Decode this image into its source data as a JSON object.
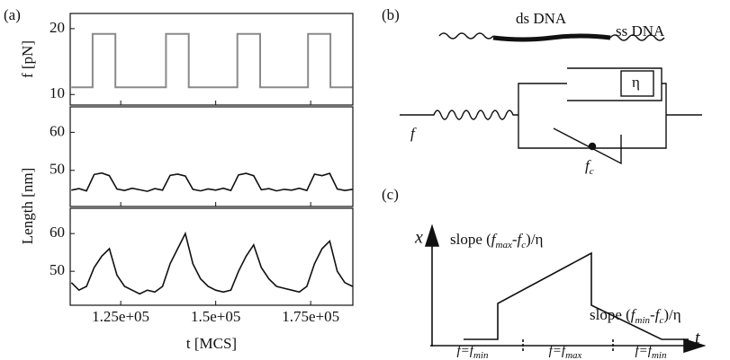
{
  "chart_data": [
    {
      "type": "line",
      "panel_label": "(a)",
      "y_label": "f [pN]",
      "xlim": [
        111700,
        186100
      ],
      "ylim": [
        8.4,
        22.3
      ],
      "yticks": [
        10,
        20
      ],
      "series": [
        {
          "color": "#8a8a8a",
          "x": [
            112000,
            117600,
            117600,
            123600,
            123600,
            136900,
            136900,
            142900,
            142900,
            155700,
            155700,
            161700,
            161700,
            174300,
            174300,
            180200,
            180200,
            186000
          ],
          "values": [
            11.1,
            11.1,
            19.2,
            19.2,
            11.1,
            11.1,
            19.2,
            19.2,
            11.1,
            11.1,
            19.2,
            19.2,
            11.1,
            11.1,
            19.2,
            19.2,
            11.1,
            11.1
          ]
        }
      ]
    },
    {
      "type": "line",
      "y_label": "Length [nm]",
      "xlim": [
        111700,
        186100
      ],
      "ylim": [
        40.5,
        66.7
      ],
      "yticks": [
        50,
        60
      ],
      "series": [
        {
          "color": "#111111",
          "x": [
            112000,
            114000,
            116000,
            118000,
            120000,
            122000,
            124000,
            126000,
            128000,
            130000,
            132000,
            134000,
            136000,
            138000,
            140000,
            142000,
            144000,
            146000,
            148000,
            150000,
            152000,
            154000,
            156000,
            158000,
            160000,
            162000,
            164000,
            166000,
            168000,
            170000,
            172000,
            174000,
            176000,
            178000,
            180000,
            182000,
            184000,
            186000
          ],
          "values": [
            44.8,
            45.2,
            44.6,
            48.9,
            49.3,
            48.6,
            45.1,
            44.7,
            45.3,
            44.9,
            44.5,
            45.2,
            44.8,
            48.7,
            49.0,
            48.5,
            45.0,
            44.6,
            45.1,
            44.8,
            45.3,
            44.7,
            48.8,
            49.2,
            48.6,
            44.9,
            45.2,
            44.6,
            45.0,
            44.8,
            45.3,
            44.7,
            49.0,
            48.6,
            49.2,
            45.1,
            44.7,
            45.0
          ]
        }
      ]
    },
    {
      "type": "line",
      "x_label": "t [MCS]",
      "xlim": [
        111700,
        186100
      ],
      "ylim": [
        41,
        66.7
      ],
      "yticks": [
        50,
        60
      ],
      "xticks": [
        {
          "value": 125000,
          "label": "1.25e+05"
        },
        {
          "value": 150000,
          "label": "1.5e+05"
        },
        {
          "value": 175000,
          "label": "1.75e+05"
        }
      ],
      "series": [
        {
          "color": "#111111",
          "x": [
            112000,
            114000,
            116000,
            118000,
            120000,
            122000,
            124000,
            126000,
            128000,
            130000,
            132000,
            134000,
            136000,
            138000,
            140000,
            142000,
            144000,
            146000,
            148000,
            150000,
            152000,
            154000,
            156000,
            158000,
            160000,
            162000,
            164000,
            166000,
            168000,
            170000,
            172000,
            174000,
            176000,
            178000,
            180000,
            182000,
            184000,
            186000
          ],
          "values": [
            47,
            45,
            46,
            51,
            54,
            56,
            49,
            46,
            45,
            44,
            45,
            44.5,
            46,
            52,
            56,
            60,
            52,
            48,
            46,
            45,
            44.5,
            45,
            50,
            54,
            57,
            51,
            48,
            46,
            45.5,
            45,
            44.5,
            46,
            52,
            56,
            58,
            50,
            47,
            46
          ]
        }
      ]
    }
  ],
  "panel_b": {
    "label": "(b)",
    "ds": "ds DNA",
    "ss": "ss DNA",
    "eta": "η",
    "f": "f",
    "fc": [
      "f",
      "c"
    ]
  },
  "panel_c": {
    "label": "(c)",
    "x_axis": "x",
    "t_axis": "t",
    "slope_max": [
      "slope (",
      "f",
      "max",
      "-",
      "f",
      "c",
      ")/η"
    ],
    "slope_min": [
      "slope (",
      "f",
      "min",
      "-",
      "f",
      "c",
      ")/η"
    ],
    "phases": [
      [
        "f=f",
        "min"
      ],
      [
        "f=f",
        "max"
      ],
      [
        "f=f",
        "min"
      ]
    ]
  }
}
